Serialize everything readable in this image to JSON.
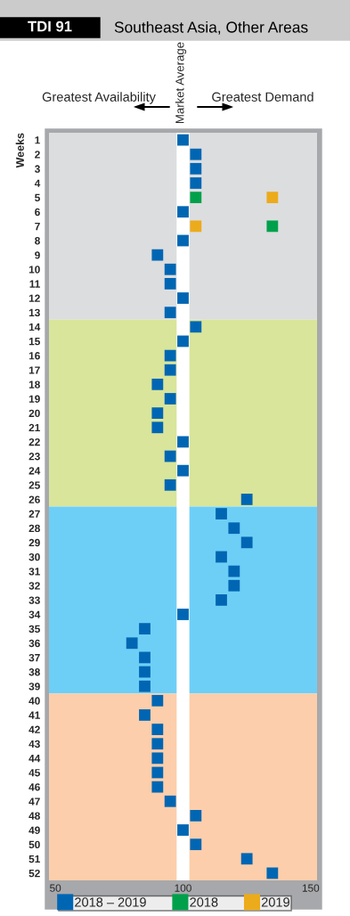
{
  "chart_data": {
    "type": "scatter",
    "orientation": "horizontal",
    "title": "Southeast Asia, Other Areas",
    "subtitle": "TDI 91",
    "ylabel": "Weeks",
    "annotations": [
      "Greatest Availability",
      "Market Average",
      "Greatest Demand"
    ],
    "categories": [
      "1",
      "2",
      "3",
      "4",
      "5",
      "6",
      "7",
      "8",
      "9",
      "10",
      "11",
      "12",
      "13",
      "14",
      "15",
      "16",
      "17",
      "18",
      "19",
      "20",
      "21",
      "22",
      "23",
      "24",
      "25",
      "26",
      "27",
      "28",
      "29",
      "30",
      "31",
      "32",
      "33",
      "34",
      "35",
      "36",
      "37",
      "38",
      "39",
      "40",
      "41",
      "42",
      "43",
      "44",
      "45",
      "46",
      "47",
      "48",
      "49",
      "50",
      "51",
      "52"
    ],
    "series": [
      {
        "name": "2018 – 2019",
        "color": "#0066b3",
        "values": [
          100,
          105,
          105,
          105,
          null,
          100,
          null,
          100,
          90,
          95,
          95,
          100,
          95,
          105,
          100,
          95,
          95,
          90,
          95,
          90,
          90,
          100,
          95,
          100,
          95,
          125,
          115,
          120,
          125,
          115,
          120,
          120,
          115,
          100,
          85,
          80,
          85,
          85,
          85,
          90,
          85,
          90,
          90,
          90,
          90,
          90,
          95,
          105,
          100,
          105,
          125,
          135
        ]
      },
      {
        "name": "2018",
        "color": "#00a04b",
        "values": [
          null,
          null,
          null,
          null,
          105,
          null,
          135,
          null,
          null,
          null,
          null,
          null,
          null,
          null,
          null,
          null,
          null,
          null,
          null,
          null,
          null,
          null,
          null,
          null,
          null,
          null,
          null,
          null,
          null,
          null,
          null,
          null,
          null,
          null,
          null,
          null,
          null,
          null,
          null,
          null,
          null,
          null,
          null,
          null,
          null,
          null,
          null,
          null,
          null,
          null,
          null,
          null
        ]
      },
      {
        "name": "2019",
        "color": "#ecab1b",
        "values": [
          null,
          null,
          null,
          null,
          135,
          null,
          105,
          null,
          null,
          null,
          null,
          null,
          null,
          null,
          null,
          null,
          null,
          null,
          null,
          null,
          null,
          null,
          null,
          null,
          null,
          null,
          null,
          null,
          null,
          null,
          null,
          null,
          null,
          null,
          null,
          null,
          null,
          null,
          null,
          null,
          null,
          null,
          null,
          null,
          null,
          null,
          null,
          null,
          null,
          null,
          null,
          null
        ]
      }
    ],
    "bands": [
      {
        "axis": "y",
        "from": "1",
        "to": "13",
        "color": "#dcdddf"
      },
      {
        "axis": "y",
        "from": "14",
        "to": "26",
        "color": "#d9e59a"
      },
      {
        "axis": "y",
        "from": "27",
        "to": "39",
        "color": "#6ecff6"
      },
      {
        "axis": "y",
        "from": "40",
        "to": "52",
        "color": "#fcceab"
      },
      {
        "axis": "x",
        "from": 97.5,
        "to": 102.5,
        "color": "#ffffff"
      }
    ],
    "xlim": [
      47.5,
      152.5
    ],
    "xticks": [
      50,
      100,
      150
    ],
    "marker": "square",
    "grid": false,
    "legend": "bottom"
  }
}
